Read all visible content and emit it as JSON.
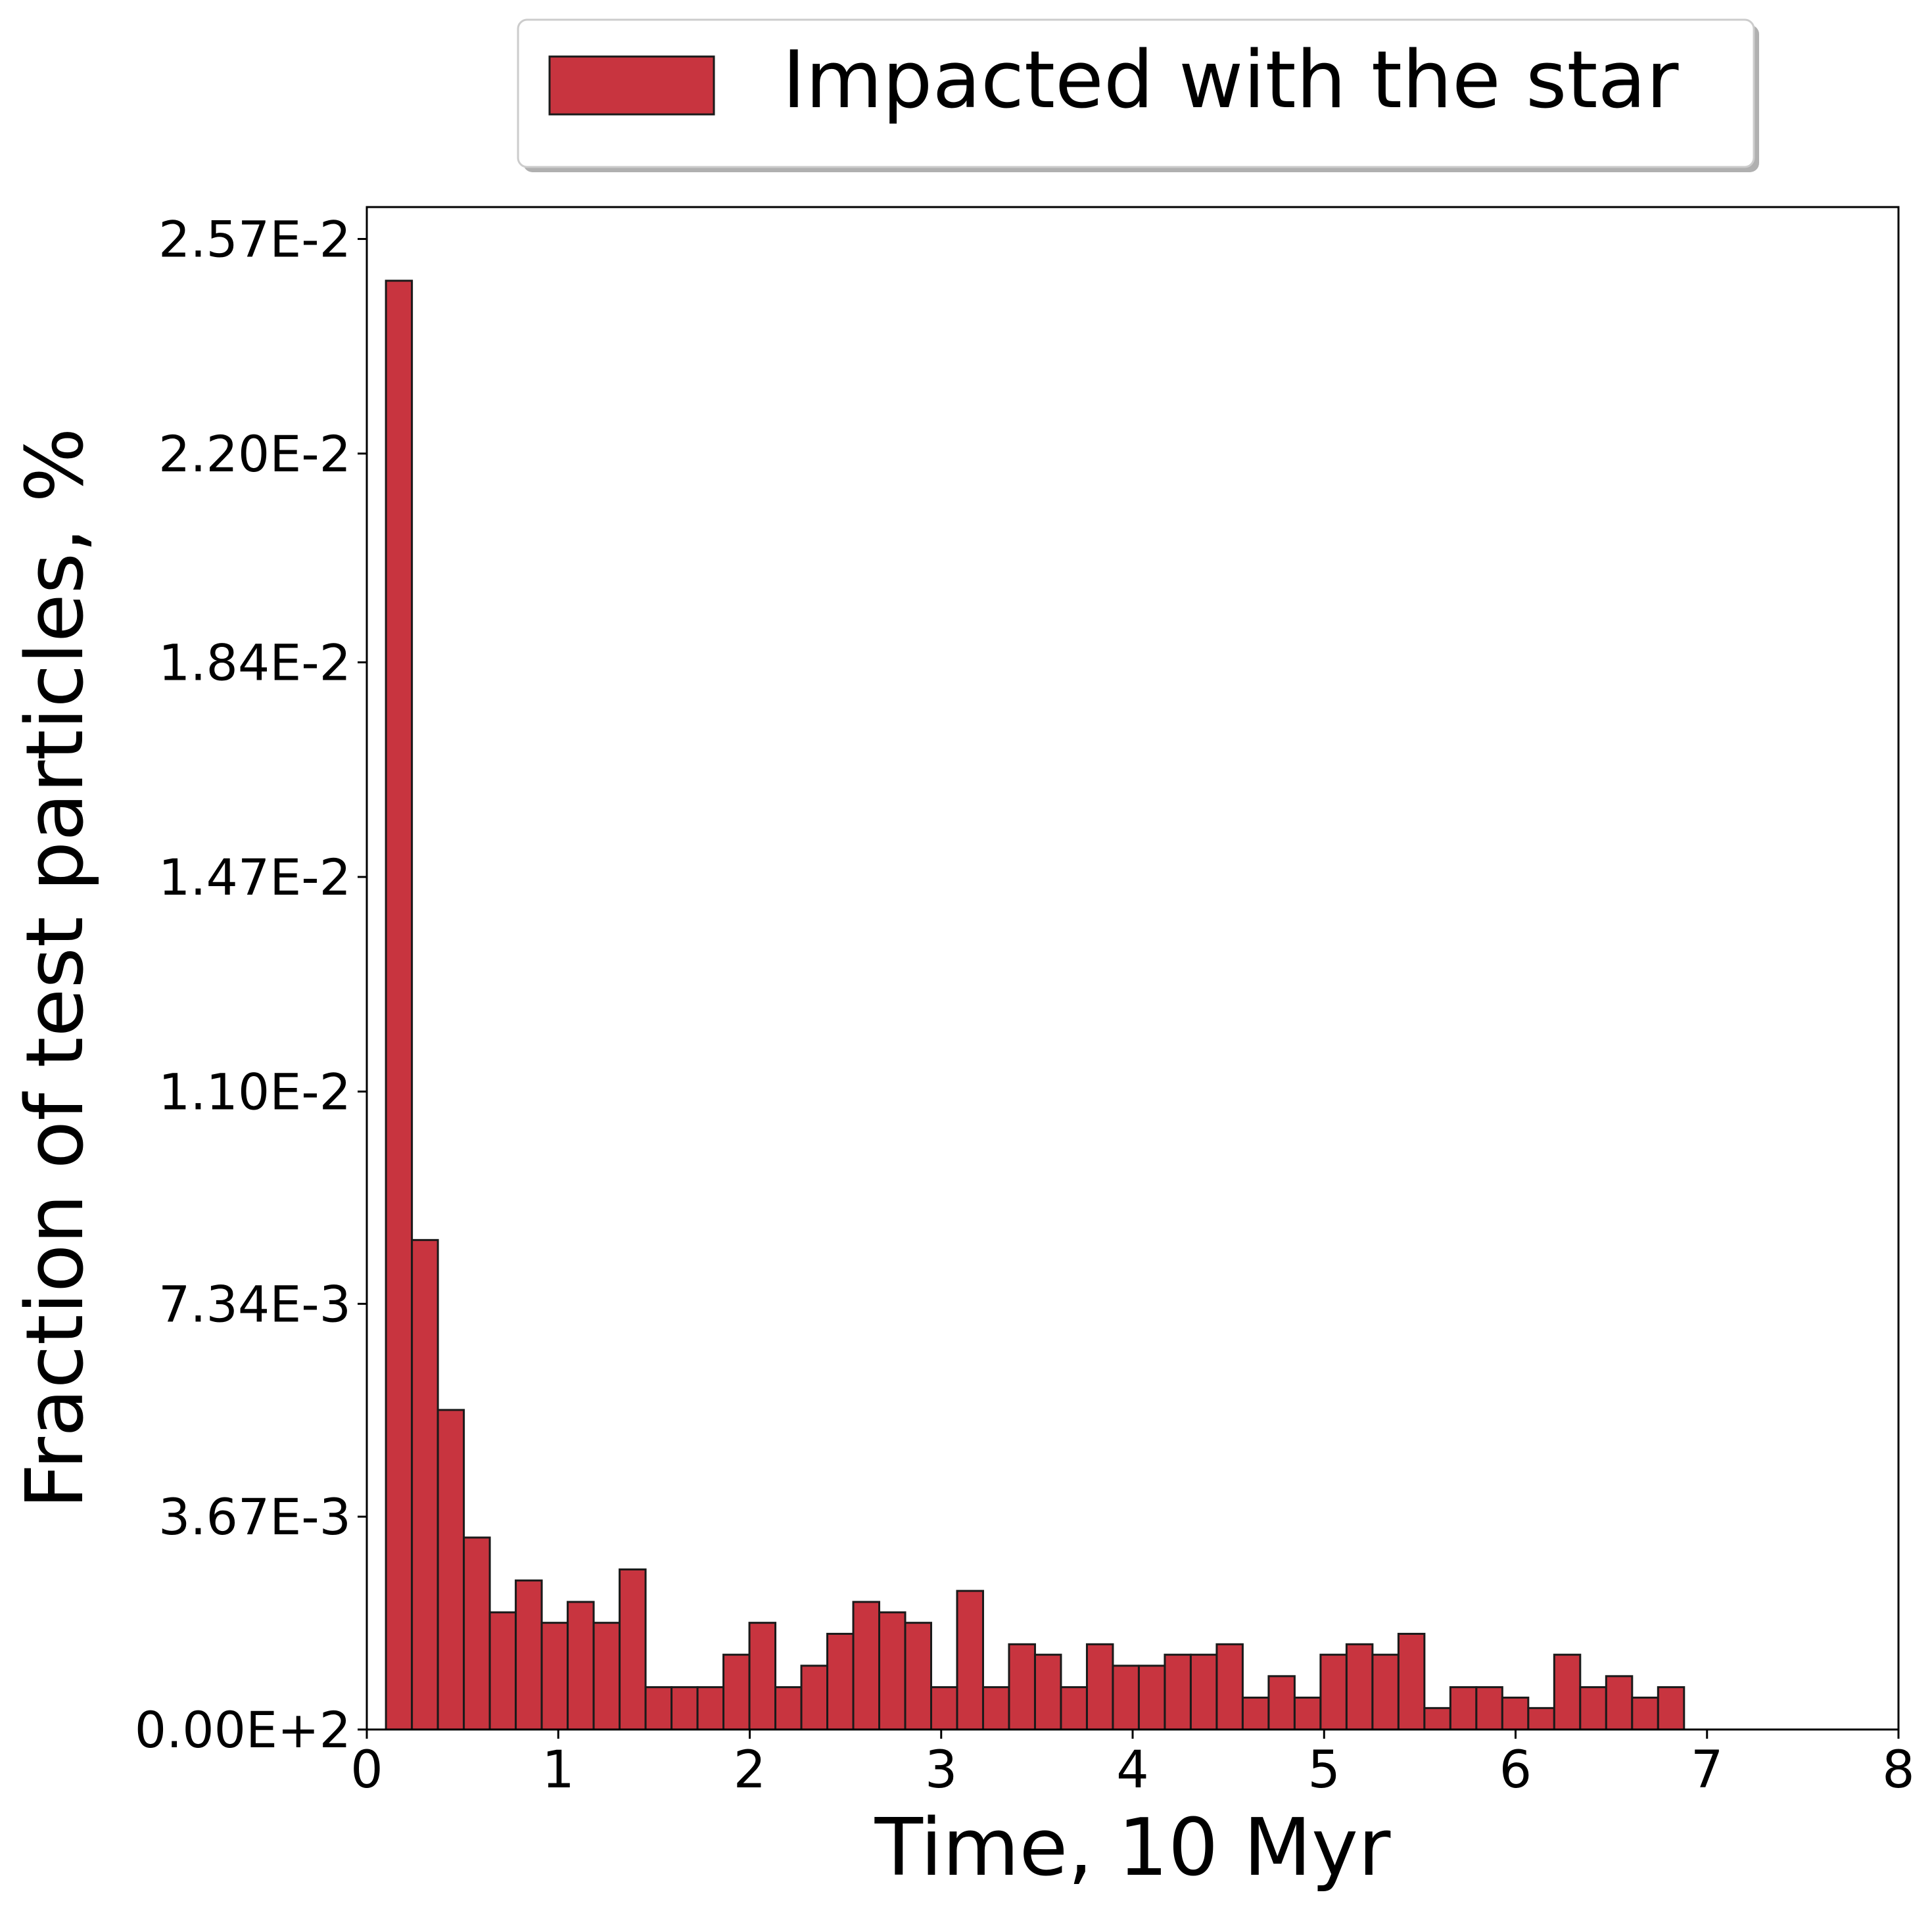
{
  "chart_data": {
    "type": "bar",
    "title": "",
    "xlabel": "Time, 10 Myr",
    "ylabel": "Fraction of test particles, %",
    "xlim": [
      0,
      8
    ],
    "ylim": [
      0,
      0.02625
    ],
    "x_ticks": [
      0,
      1,
      2,
      3,
      4,
      5,
      6,
      7,
      8
    ],
    "x_tick_labels": [
      "0",
      "1",
      "2",
      "3",
      "4",
      "5",
      "6",
      "7",
      "8"
    ],
    "y_ticks": [
      0,
      0.00367,
      0.00734,
      0.011,
      0.0147,
      0.0184,
      0.022,
      0.0257
    ],
    "y_tick_labels": [
      "0.00E+2",
      "3.67E-3",
      "7.34E-3",
      "1.10E-2",
      "1.47E-2",
      "1.84E-2",
      "2.20E-2",
      "2.57E-2"
    ],
    "grid": false,
    "legend_position": "top-center, above plot",
    "bar_color": "#c8343f",
    "edge_color": "#1a1a1a",
    "bin_edges": [
      0.1,
      0.2356,
      0.3712,
      0.5068,
      0.6424,
      0.778,
      0.9136,
      1.0492,
      1.1848,
      1.3204,
      1.456,
      1.5916,
      1.7272,
      1.8628,
      1.9984,
      2.134,
      2.2696,
      2.4052,
      2.5408,
      2.6764,
      2.812,
      2.9476,
      3.0832,
      3.2188,
      3.3544,
      3.49,
      3.6256,
      3.7612,
      3.8968,
      4.0324,
      4.168,
      4.3036,
      4.4392,
      4.5748,
      4.7104,
      4.846,
      4.9816,
      5.1172,
      5.2528,
      5.3884,
      5.524,
      5.6596,
      5.7952,
      5.9308,
      6.0664,
      6.202,
      6.3376,
      6.4732,
      6.6088,
      6.7444,
      6.88
    ],
    "series": [
      {
        "name": "Impacted with the star",
        "values": [
          0.02498,
          0.00844,
          0.00551,
          0.00331,
          0.00202,
          0.00257,
          0.00184,
          0.0022,
          0.00184,
          0.00276,
          0.00073,
          0.00073,
          0.00073,
          0.00129,
          0.00184,
          0.00073,
          0.0011,
          0.00165,
          0.0022,
          0.00202,
          0.00184,
          0.00073,
          0.00239,
          0.00073,
          0.00147,
          0.00129,
          0.00073,
          0.00147,
          0.0011,
          0.0011,
          0.00129,
          0.00129,
          0.00147,
          0.00055,
          0.00092,
          0.00055,
          0.00129,
          0.00147,
          0.00129,
          0.00165,
          0.00037,
          0.00073,
          0.00073,
          0.00055,
          0.00037,
          0.00129,
          0.00073,
          0.00092,
          0.00055,
          0.00073
        ]
      }
    ]
  }
}
